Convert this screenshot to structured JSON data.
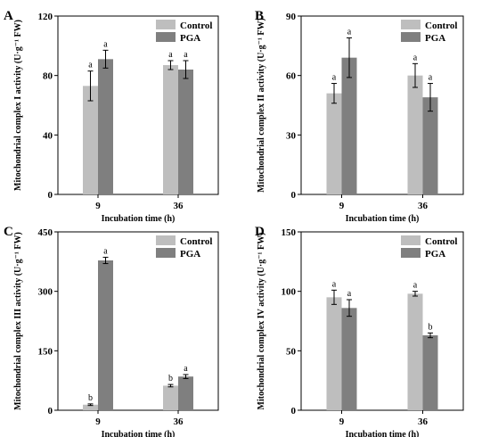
{
  "chart_data": [
    {
      "panel": "A",
      "type": "bar",
      "categories": [
        "9",
        "36"
      ],
      "series": [
        {
          "name": "Control",
          "color": "#bebebe",
          "values": [
            73,
            87
          ],
          "errors": [
            10,
            3
          ],
          "letters": [
            "a",
            "a"
          ]
        },
        {
          "name": "PGA",
          "color": "#7f7f7f",
          "values": [
            91,
            84
          ],
          "errors": [
            6,
            6
          ],
          "letters": [
            "a",
            "a"
          ]
        }
      ],
      "xlabel": "Incubation time (h)",
      "ylabel": "Mitochondrial complex I activity (U·g⁻¹ FW)",
      "ylim": [
        0,
        120
      ],
      "yticks": [
        0,
        40,
        80,
        120
      ],
      "legend": "top-right",
      "grid": false
    },
    {
      "panel": "B",
      "type": "bar",
      "categories": [
        "9",
        "36"
      ],
      "series": [
        {
          "name": "Control",
          "color": "#bebebe",
          "values": [
            51,
            60
          ],
          "errors": [
            5,
            6
          ],
          "letters": [
            "a",
            "a"
          ]
        },
        {
          "name": "PGA",
          "color": "#7f7f7f",
          "values": [
            69,
            49
          ],
          "errors": [
            10,
            7
          ],
          "letters": [
            "a",
            "a"
          ]
        }
      ],
      "xlabel": "Incubation time (h)",
      "ylabel": "Mitochondrial complex II activity (U·g⁻¹ FW)",
      "ylim": [
        0,
        90
      ],
      "yticks": [
        0,
        30,
        60,
        90
      ],
      "legend": "top-right",
      "grid": false
    },
    {
      "panel": "C",
      "type": "bar",
      "categories": [
        "9",
        "36"
      ],
      "series": [
        {
          "name": "Control",
          "color": "#bebebe",
          "values": [
            14,
            62
          ],
          "errors": [
            2,
            3
          ],
          "letters": [
            "b",
            "b"
          ]
        },
        {
          "name": "PGA",
          "color": "#7f7f7f",
          "values": [
            378,
            85
          ],
          "errors": [
            8,
            5
          ],
          "letters": [
            "a",
            "a"
          ]
        }
      ],
      "xlabel": "Incubation time (h)",
      "ylabel": "Mitochondrial complex III activity (U·g⁻¹ FW)",
      "ylim": [
        0,
        450
      ],
      "yticks": [
        0,
        150,
        300,
        450
      ],
      "legend": "top-right",
      "grid": false
    },
    {
      "panel": "D",
      "type": "bar",
      "categories": [
        "9",
        "36"
      ],
      "series": [
        {
          "name": "Control",
          "color": "#bebebe",
          "values": [
            95,
            98
          ],
          "errors": [
            6,
            2
          ],
          "letters": [
            "a",
            "a"
          ]
        },
        {
          "name": "PGA",
          "color": "#7f7f7f",
          "values": [
            86,
            63
          ],
          "errors": [
            7,
            2
          ],
          "letters": [
            "a",
            "b"
          ]
        }
      ],
      "xlabel": "Incubation time (h)",
      "ylabel": "Mitochondrial complex IV activity (U·g⁻¹ FW)",
      "ylim": [
        0,
        150
      ],
      "yticks": [
        0,
        50,
        100,
        150
      ],
      "legend": "top-right",
      "grid": false
    }
  ]
}
